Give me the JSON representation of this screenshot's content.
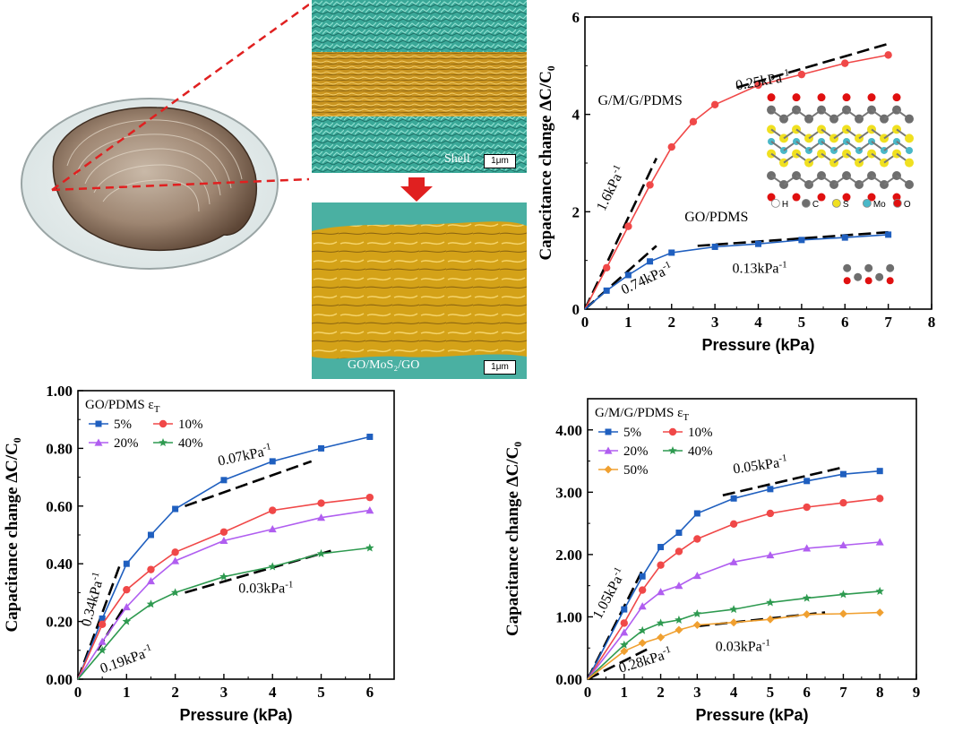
{
  "sem": {
    "top_label": "Shell",
    "bottom_label": "GO/MoS₂/GO",
    "scale_label": "1μm"
  },
  "colors": {
    "blue": "#1f5fbf",
    "red": "#f04848",
    "purple": "#b05ef0",
    "green": "#2e9a50",
    "orange": "#f0a030",
    "gold": "#d9a520",
    "teal": "#3fb0a0",
    "dashed": "#000000",
    "zoom_line": "#e02020"
  },
  "chart_data": [
    {
      "id": "a",
      "type": "line",
      "xlabel": "Pressure (kPa)",
      "ylabel": "Capacitance change ΔC/C₀",
      "xlim": [
        0,
        8
      ],
      "ylim": [
        0,
        6
      ],
      "xticks": [
        0,
        1,
        2,
        3,
        4,
        5,
        6,
        7,
        8
      ],
      "yticks": [
        0,
        2,
        4,
        6
      ],
      "ytick_labels": [
        "0",
        "2",
        "4",
        "6"
      ],
      "series": [
        {
          "name": "G/M/G/PDMS",
          "color": "#f04848",
          "marker": "circle",
          "x": [
            0,
            0.5,
            1,
            1.5,
            2,
            2.5,
            3,
            4,
            5,
            6,
            7
          ],
          "y": [
            0,
            0.85,
            1.7,
            2.55,
            3.33,
            3.85,
            4.2,
            4.6,
            4.82,
            5.05,
            5.22
          ]
        },
        {
          "name": "GO/PDMS",
          "color": "#1f5fbf",
          "marker": "square",
          "x": [
            0,
            0.5,
            1,
            1.5,
            2,
            3,
            4,
            5,
            6,
            7
          ],
          "y": [
            0,
            0.38,
            0.7,
            0.98,
            1.16,
            1.28,
            1.34,
            1.42,
            1.47,
            1.53
          ]
        }
      ],
      "fits": [
        {
          "x": [
            0,
            1.65
          ],
          "y": [
            0,
            3.1
          ]
        },
        {
          "x": [
            3.5,
            7.0
          ],
          "y": [
            4.55,
            5.45
          ]
        },
        {
          "x": [
            0,
            1.65
          ],
          "y": [
            0,
            1.3
          ]
        },
        {
          "x": [
            2.6,
            7.0
          ],
          "y": [
            1.3,
            1.58
          ]
        }
      ],
      "annotations": [
        {
          "text": "G/M/G/PDMS",
          "x": 0.3,
          "y": 4.2,
          "rotate": 0
        },
        {
          "text": "GO/PDMS",
          "x": 2.3,
          "y": 1.8,
          "rotate": 0
        },
        {
          "text": "0.25kPa⁻¹",
          "x": 3.5,
          "y": 4.5,
          "rotate": -10
        },
        {
          "text": "1.6kPa⁻¹",
          "x": 0.45,
          "y": 2.0,
          "rotate": -64
        },
        {
          "text": "0.74kPa⁻¹",
          "x": 0.9,
          "y": 0.3,
          "rotate": -25
        },
        {
          "text": "0.13kPa⁻¹",
          "x": 3.4,
          "y": 0.75,
          "rotate": 0
        }
      ],
      "legend_molecules": [
        "H",
        "C",
        "S",
        "Mo",
        "O"
      ]
    },
    {
      "id": "b",
      "type": "line",
      "xlabel": "Pressure (kPa)",
      "ylabel": "Capacitance change ΔC/C₀",
      "xlim": [
        0,
        6.5
      ],
      "ylim": [
        0,
        1.0
      ],
      "xticks": [
        0,
        1,
        2,
        3,
        4,
        5,
        6
      ],
      "yticks": [
        0,
        0.2,
        0.4,
        0.6,
        0.8,
        1.0
      ],
      "ytick_labels": [
        "0.00",
        "0.20",
        "0.40",
        "0.60",
        "0.80",
        "1.00"
      ],
      "legend_title": "GO/PDMS εT",
      "series": [
        {
          "name": "5%",
          "color": "#1f5fbf",
          "marker": "square",
          "x": [
            0,
            0.5,
            1,
            1.5,
            2,
            3,
            4,
            5,
            6
          ],
          "y": [
            0,
            0.21,
            0.4,
            0.5,
            0.59,
            0.69,
            0.755,
            0.8,
            0.84
          ]
        },
        {
          "name": "10%",
          "color": "#f04848",
          "marker": "circle",
          "x": [
            0,
            0.5,
            1,
            1.5,
            2,
            3,
            4,
            5,
            6
          ],
          "y": [
            0,
            0.19,
            0.31,
            0.38,
            0.44,
            0.51,
            0.585,
            0.61,
            0.63
          ]
        },
        {
          "name": "20%",
          "color": "#b05ef0",
          "marker": "triangle",
          "x": [
            0,
            0.5,
            1,
            1.5,
            2,
            3,
            4,
            5,
            6
          ],
          "y": [
            0,
            0.13,
            0.25,
            0.34,
            0.41,
            0.48,
            0.52,
            0.56,
            0.585
          ]
        },
        {
          "name": "40%",
          "color": "#2e9a50",
          "marker": "star",
          "x": [
            0,
            0.5,
            1,
            1.5,
            2,
            3,
            4,
            5,
            6
          ],
          "y": [
            0,
            0.1,
            0.2,
            0.26,
            0.3,
            0.355,
            0.39,
            0.435,
            0.455
          ]
        }
      ],
      "fits": [
        {
          "x": [
            0,
            0.85
          ],
          "y": [
            0,
            0.39
          ]
        },
        {
          "x": [
            2.2,
            4.8
          ],
          "y": [
            0.6,
            0.755
          ]
        },
        {
          "x": [
            0.4,
            0.95
          ],
          "y": [
            0.1,
            0.25
          ]
        },
        {
          "x": [
            2.2,
            5.2
          ],
          "y": [
            0.3,
            0.445
          ]
        }
      ],
      "annotations": [
        {
          "text": "0.34kPa⁻¹",
          "x": 0.25,
          "y": 0.18,
          "rotate": -75
        },
        {
          "text": "0.07kPa⁻¹",
          "x": 2.9,
          "y": 0.74,
          "rotate": -12
        },
        {
          "text": "0.19kPa⁻¹",
          "x": 0.5,
          "y": 0.02,
          "rotate": -20
        },
        {
          "text": "0.03kPa⁻¹",
          "x": 3.3,
          "y": 0.3,
          "rotate": 0
        }
      ]
    },
    {
      "id": "c",
      "type": "line",
      "xlabel": "Pressure (kPa)",
      "ylabel": "Capacitance change ΔC/C₀",
      "xlim": [
        0,
        9
      ],
      "ylim": [
        0,
        4.5
      ],
      "xticks": [
        0,
        1,
        2,
        3,
        4,
        5,
        6,
        7,
        8,
        9
      ],
      "yticks": [
        0,
        1,
        2,
        3,
        4
      ],
      "ytick_labels": [
        "0.00",
        "1.00",
        "2.00",
        "3.00",
        "4.00"
      ],
      "legend_title": "G/M/G/PDMS εT",
      "series": [
        {
          "name": "5%",
          "color": "#1f5fbf",
          "marker": "square",
          "x": [
            0,
            1,
            1.5,
            2,
            2.5,
            3,
            4,
            5,
            6,
            7,
            8
          ],
          "y": [
            0,
            1.12,
            1.65,
            2.12,
            2.35,
            2.66,
            2.9,
            3.05,
            3.18,
            3.29,
            3.34
          ]
        },
        {
          "name": "10%",
          "color": "#f04848",
          "marker": "circle",
          "x": [
            0,
            1,
            1.5,
            2,
            2.5,
            3,
            4,
            5,
            6,
            7,
            8
          ],
          "y": [
            0,
            0.9,
            1.43,
            1.83,
            2.05,
            2.25,
            2.49,
            2.66,
            2.76,
            2.83,
            2.9
          ]
        },
        {
          "name": "20%",
          "color": "#b05ef0",
          "marker": "triangle",
          "x": [
            0,
            1,
            1.5,
            2,
            2.5,
            3,
            4,
            5,
            6,
            7,
            8
          ],
          "y": [
            0,
            0.75,
            1.17,
            1.4,
            1.5,
            1.66,
            1.88,
            1.99,
            2.1,
            2.15,
            2.2
          ]
        },
        {
          "name": "40%",
          "color": "#2e9a50",
          "marker": "star",
          "x": [
            0,
            1,
            1.5,
            2,
            2.5,
            3,
            4,
            5,
            6,
            7,
            8
          ],
          "y": [
            0,
            0.55,
            0.78,
            0.9,
            0.95,
            1.05,
            1.12,
            1.23,
            1.3,
            1.36,
            1.41
          ]
        },
        {
          "name": "50%",
          "color": "#f0a030",
          "marker": "diamond",
          "x": [
            0,
            1,
            1.5,
            2,
            2.5,
            3,
            4,
            5,
            6,
            7,
            8
          ],
          "y": [
            0,
            0.45,
            0.58,
            0.67,
            0.79,
            0.87,
            0.91,
            0.96,
            1.04,
            1.05,
            1.07
          ]
        }
      ],
      "fits": [
        {
          "x": [
            0,
            1.5
          ],
          "y": [
            0,
            1.75
          ]
        },
        {
          "x": [
            3.7,
            7.0
          ],
          "y": [
            2.95,
            3.4
          ]
        },
        {
          "x": [
            0,
            1.7
          ],
          "y": [
            0,
            0.5
          ]
        },
        {
          "x": [
            3.0,
            6.5
          ],
          "y": [
            0.85,
            1.07
          ]
        }
      ],
      "annotations": [
        {
          "text": "1.05kPa⁻¹",
          "x": 0.35,
          "y": 0.95,
          "rotate": -62
        },
        {
          "text": "0.05kPa⁻¹",
          "x": 4.0,
          "y": 3.3,
          "rotate": -8
        },
        {
          "text": "0.28kPa⁻¹",
          "x": 0.9,
          "y": 0.1,
          "rotate": -17
        },
        {
          "text": "0.03kPa⁻¹",
          "x": 3.5,
          "y": 0.45,
          "rotate": 0
        }
      ]
    }
  ]
}
